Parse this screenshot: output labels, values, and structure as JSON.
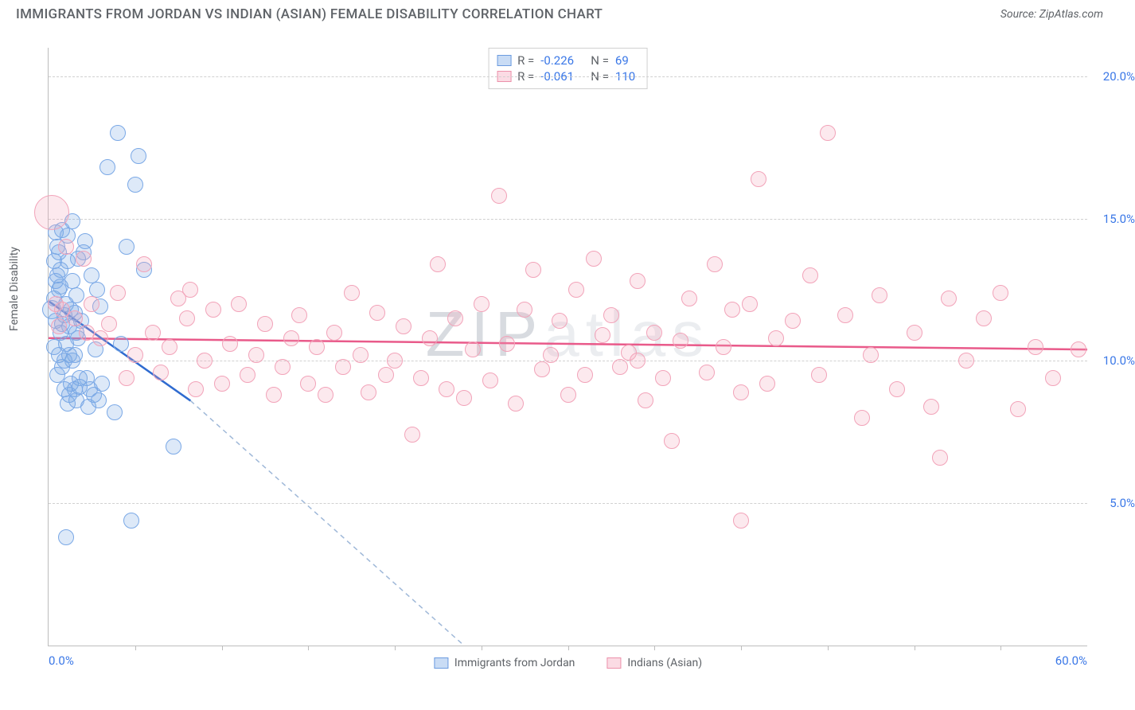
{
  "title": "IMMIGRANTS FROM JORDAN VS INDIAN (ASIAN) FEMALE DISABILITY CORRELATION CHART",
  "source": "Source: ZipAtlas.com",
  "ylabel": "Female Disability",
  "watermark_a": "ZIP",
  "watermark_b": "atlas",
  "chart": {
    "type": "scatter",
    "xlim": [
      0,
      60
    ],
    "ylim": [
      0,
      21
    ],
    "y_ticks": [
      {
        "v": 5,
        "label": "5.0%"
      },
      {
        "v": 10,
        "label": "10.0%"
      },
      {
        "v": 15,
        "label": "15.0%"
      },
      {
        "v": 20,
        "label": "20.0%"
      }
    ],
    "x_ticks_minor": [
      5,
      10,
      15,
      20,
      25,
      30,
      35,
      40,
      45,
      50,
      55
    ],
    "x_tick_labels": [
      {
        "v": 0,
        "label": "0.0%",
        "align": "left"
      },
      {
        "v": 60,
        "label": "60.0%",
        "align": "right"
      }
    ],
    "grid_color": "#d0d0d0",
    "background_color": "#ffffff",
    "marker_radius": 9,
    "series": [
      {
        "name": "Immigrants from Jordan",
        "color_fill": "rgba(120,167,229,0.25)",
        "color_stroke": "#7aa8e6",
        "R": "-0.226",
        "N": "69",
        "trend": {
          "x1": 0,
          "y1": 12.1,
          "x2": 8.2,
          "y2": 8.6,
          "dash_to_x": 24,
          "dash_to_y": 0,
          "solid_color": "#2f6bd0",
          "dash_color": "#9fb8d8"
        },
        "points": [
          [
            0.2,
            11.8,
            12
          ],
          [
            0.3,
            12.2,
            10
          ],
          [
            0.4,
            11.4,
            10
          ],
          [
            0.5,
            13.0,
            10
          ],
          [
            0.5,
            14.0,
            10
          ],
          [
            0.6,
            10.2,
            10
          ],
          [
            0.7,
            11.0,
            10
          ],
          [
            0.7,
            12.6,
            10
          ],
          [
            0.8,
            9.8,
            10
          ],
          [
            0.8,
            14.6,
            10
          ],
          [
            0.9,
            11.6,
            10
          ],
          [
            1.0,
            10.6,
            10
          ],
          [
            1.0,
            12.0,
            10
          ],
          [
            1.1,
            13.5,
            10
          ],
          [
            1.2,
            8.8,
            10
          ],
          [
            1.2,
            11.2,
            10
          ],
          [
            1.3,
            9.2,
            10
          ],
          [
            1.4,
            10.0,
            10
          ],
          [
            1.4,
            12.8,
            10
          ],
          [
            1.5,
            11.7,
            10
          ],
          [
            1.5,
            9.0,
            10
          ],
          [
            1.6,
            8.6,
            10
          ],
          [
            1.6,
            12.3,
            10
          ],
          [
            1.7,
            10.8,
            10
          ],
          [
            1.8,
            9.4,
            10
          ],
          [
            1.9,
            11.4,
            10
          ],
          [
            2.0,
            13.8,
            10
          ],
          [
            2.1,
            14.2,
            10
          ],
          [
            2.3,
            8.4,
            10
          ],
          [
            2.5,
            13.0,
            10
          ],
          [
            2.6,
            8.8,
            10
          ],
          [
            2.7,
            10.4,
            10
          ],
          [
            2.9,
            8.6,
            10
          ],
          [
            3.0,
            11.9,
            10
          ],
          [
            3.1,
            9.2,
            10
          ],
          [
            3.4,
            16.8,
            10
          ],
          [
            3.8,
            8.2,
            10
          ],
          [
            4.0,
            18.0,
            10
          ],
          [
            4.2,
            10.6,
            10
          ],
          [
            4.5,
            14.0,
            10
          ],
          [
            5.0,
            16.2,
            10
          ],
          [
            5.2,
            17.2,
            10
          ],
          [
            5.5,
            13.2,
            10
          ],
          [
            1.0,
            3.8,
            10
          ],
          [
            4.8,
            4.4,
            10
          ],
          [
            7.2,
            7.0,
            10
          ],
          [
            0.4,
            14.5,
            10
          ],
          [
            0.6,
            13.8,
            10
          ],
          [
            1.1,
            14.4,
            10
          ],
          [
            0.3,
            10.5,
            10
          ],
          [
            0.9,
            9.0,
            10
          ],
          [
            1.3,
            11.8,
            10
          ],
          [
            1.7,
            13.6,
            10
          ],
          [
            0.5,
            9.5,
            10
          ],
          [
            1.8,
            9.1,
            10
          ],
          [
            2.2,
            9.4,
            10
          ],
          [
            2.4,
            9.0,
            10
          ],
          [
            0.7,
            13.2,
            10
          ],
          [
            1.4,
            14.9,
            10
          ],
          [
            0.8,
            11.3,
            10
          ],
          [
            1.2,
            10.2,
            10
          ],
          [
            1.5,
            10.2,
            10
          ],
          [
            0.6,
            12.5,
            10
          ],
          [
            2.8,
            12.5,
            10
          ],
          [
            0.4,
            12.8,
            10
          ],
          [
            0.9,
            10.0,
            10
          ],
          [
            1.1,
            8.5,
            10
          ],
          [
            1.6,
            11.0,
            10
          ],
          [
            0.3,
            13.5,
            10
          ]
        ]
      },
      {
        "name": "Indians (Asian)",
        "color_fill": "rgba(244,166,188,0.25)",
        "color_stroke": "#f2a3b9",
        "R": "-0.061",
        "N": "110",
        "trend": {
          "x1": 0,
          "y1": 10.8,
          "x2": 60,
          "y2": 10.4,
          "solid_color": "#e95a8a"
        },
        "points": [
          [
            0.2,
            15.2,
            22
          ],
          [
            0.4,
            12.0,
            10
          ],
          [
            0.6,
            11.2,
            10
          ],
          [
            0.8,
            11.8,
            10
          ],
          [
            1.0,
            14.0,
            10
          ],
          [
            1.5,
            11.5,
            10
          ],
          [
            2.0,
            13.6,
            10
          ],
          [
            2.2,
            11.0,
            10
          ],
          [
            2.5,
            12.0,
            10
          ],
          [
            3.0,
            10.8,
            10
          ],
          [
            3.5,
            11.3,
            10
          ],
          [
            4.0,
            12.4,
            10
          ],
          [
            4.5,
            9.4,
            10
          ],
          [
            5.0,
            10.2,
            10
          ],
          [
            5.5,
            13.4,
            10
          ],
          [
            6.0,
            11.0,
            10
          ],
          [
            6.5,
            9.6,
            10
          ],
          [
            7.0,
            10.5,
            10
          ],
          [
            7.5,
            12.2,
            10
          ],
          [
            8.0,
            11.5,
            10
          ],
          [
            8.2,
            12.5,
            10
          ],
          [
            8.5,
            9.0,
            10
          ],
          [
            9.0,
            10.0,
            10
          ],
          [
            9.5,
            11.8,
            10
          ],
          [
            10.0,
            9.2,
            10
          ],
          [
            10.5,
            10.6,
            10
          ],
          [
            11.0,
            12.0,
            10
          ],
          [
            11.5,
            9.5,
            10
          ],
          [
            12.0,
            10.2,
            10
          ],
          [
            12.5,
            11.3,
            10
          ],
          [
            13.0,
            8.8,
            10
          ],
          [
            13.5,
            9.8,
            10
          ],
          [
            14.0,
            10.8,
            10
          ],
          [
            14.5,
            11.6,
            10
          ],
          [
            15.0,
            9.2,
            10
          ],
          [
            15.5,
            10.5,
            10
          ],
          [
            16.0,
            8.8,
            10
          ],
          [
            16.5,
            11.0,
            10
          ],
          [
            17.0,
            9.8,
            10
          ],
          [
            17.5,
            12.4,
            10
          ],
          [
            18.0,
            10.2,
            10
          ],
          [
            18.5,
            8.9,
            10
          ],
          [
            19.0,
            11.7,
            10
          ],
          [
            19.5,
            9.5,
            10
          ],
          [
            20.0,
            10.0,
            10
          ],
          [
            20.5,
            11.2,
            10
          ],
          [
            21.0,
            7.4,
            10
          ],
          [
            21.5,
            9.4,
            10
          ],
          [
            22.0,
            10.8,
            10
          ],
          [
            22.5,
            13.4,
            10
          ],
          [
            23.0,
            9.0,
            10
          ],
          [
            23.5,
            11.5,
            10
          ],
          [
            24.0,
            8.7,
            10
          ],
          [
            24.5,
            10.4,
            10
          ],
          [
            25.0,
            12.0,
            10
          ],
          [
            25.5,
            9.3,
            10
          ],
          [
            26.0,
            15.8,
            10
          ],
          [
            26.5,
            10.6,
            10
          ],
          [
            27.0,
            8.5,
            10
          ],
          [
            27.5,
            11.8,
            10
          ],
          [
            28.0,
            13.2,
            10
          ],
          [
            28.5,
            9.7,
            10
          ],
          [
            29.0,
            10.2,
            10
          ],
          [
            29.5,
            11.4,
            10
          ],
          [
            30.0,
            8.8,
            10
          ],
          [
            30.5,
            12.5,
            10
          ],
          [
            31.0,
            9.5,
            10
          ],
          [
            31.5,
            13.6,
            10
          ],
          [
            32.0,
            10.9,
            10
          ],
          [
            32.5,
            11.6,
            10
          ],
          [
            33.0,
            9.8,
            10
          ],
          [
            33.5,
            10.3,
            10
          ],
          [
            34.0,
            12.8,
            10
          ],
          [
            34.5,
            8.6,
            10
          ],
          [
            35.0,
            11.0,
            10
          ],
          [
            35.5,
            9.4,
            10
          ],
          [
            36.0,
            7.2,
            10
          ],
          [
            36.5,
            10.7,
            10
          ],
          [
            37.0,
            12.2,
            10
          ],
          [
            38.0,
            9.6,
            10
          ],
          [
            38.5,
            13.4,
            10
          ],
          [
            39.0,
            10.5,
            10
          ],
          [
            39.5,
            11.8,
            10
          ],
          [
            40.0,
            8.9,
            10
          ],
          [
            40.5,
            12.0,
            10
          ],
          [
            41.0,
            16.4,
            10
          ],
          [
            41.5,
            9.2,
            10
          ],
          [
            42.0,
            10.8,
            10
          ],
          [
            43.0,
            11.4,
            10
          ],
          [
            44.0,
            13.0,
            10
          ],
          [
            45.0,
            18.0,
            10
          ],
          [
            44.5,
            9.5,
            10
          ],
          [
            46.0,
            11.6,
            10
          ],
          [
            47.0,
            8.0,
            10
          ],
          [
            47.5,
            10.2,
            10
          ],
          [
            48.0,
            12.3,
            10
          ],
          [
            49.0,
            9.0,
            10
          ],
          [
            50.0,
            11.0,
            10
          ],
          [
            51.0,
            8.4,
            10
          ],
          [
            51.5,
            6.6,
            10
          ],
          [
            52.0,
            12.2,
            10
          ],
          [
            53.0,
            10.0,
            10
          ],
          [
            54.0,
            11.5,
            10
          ],
          [
            55.0,
            12.4,
            10
          ],
          [
            56.0,
            8.3,
            10
          ],
          [
            57.0,
            10.5,
            10
          ],
          [
            58.0,
            9.4,
            10
          ],
          [
            59.5,
            10.4,
            10
          ],
          [
            40.0,
            4.4,
            10
          ],
          [
            34.0,
            10.0,
            10
          ]
        ]
      }
    ]
  },
  "legend_bottom": [
    {
      "swatch": "blue",
      "label": "Immigrants from Jordan"
    },
    {
      "swatch": "pink",
      "label": "Indians (Asian)"
    }
  ]
}
